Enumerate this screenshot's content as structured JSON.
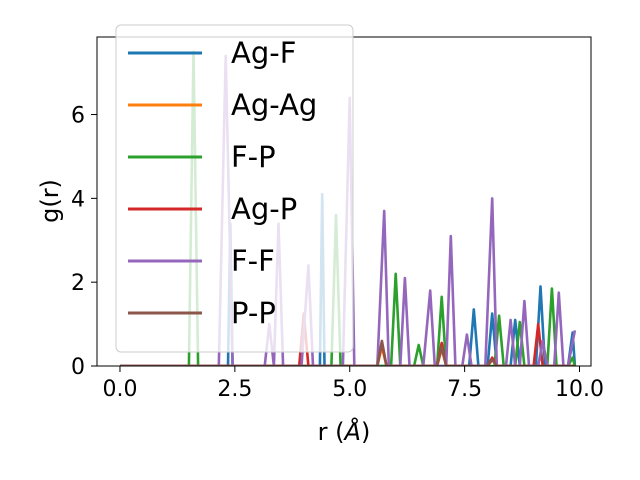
{
  "chart_data": {
    "type": "line",
    "xlabel_main": "r (",
    "xlabel_unit": "Å",
    "xlabel_close": ")",
    "ylabel": "g(r)",
    "xlim": [
      -0.5,
      10.25
    ],
    "ylim": [
      0,
      7.85
    ],
    "xticks": [
      {
        "v": 0.0,
        "label": "0.0"
      },
      {
        "v": 2.5,
        "label": "2.5"
      },
      {
        "v": 5.0,
        "label": "5.0"
      },
      {
        "v": 7.5,
        "label": "7.5"
      },
      {
        "v": 10.0,
        "label": "10.0"
      }
    ],
    "yticks": [
      {
        "v": 0,
        "label": "0"
      },
      {
        "v": 2,
        "label": "2"
      },
      {
        "v": 4,
        "label": "4"
      },
      {
        "v": 6,
        "label": "6"
      }
    ],
    "legend_position": "upper-left",
    "series": [
      {
        "name": "Ag-F",
        "color": "#1f77b4",
        "points": [
          [
            0,
            0
          ],
          [
            2.35,
            0
          ],
          [
            2.4,
            3.4
          ],
          [
            2.45,
            0
          ],
          [
            4.35,
            0
          ],
          [
            4.4,
            4.1
          ],
          [
            4.45,
            0
          ],
          [
            7.6,
            0
          ],
          [
            7.7,
            1.35
          ],
          [
            7.8,
            0
          ],
          [
            8.0,
            0
          ],
          [
            8.1,
            1.25
          ],
          [
            8.2,
            0
          ],
          [
            8.5,
            0
          ],
          [
            8.6,
            1.1
          ],
          [
            8.7,
            0
          ],
          [
            9.05,
            0
          ],
          [
            9.15,
            1.9
          ],
          [
            9.25,
            0
          ],
          [
            9.75,
            0
          ],
          [
            9.85,
            0.8
          ],
          [
            9.9,
            0
          ]
        ]
      },
      {
        "name": "Ag-Ag",
        "color": "#ff7f0e",
        "points": [
          [
            0,
            0
          ],
          [
            5.6,
            0
          ],
          [
            5.7,
            0.45
          ],
          [
            5.8,
            0
          ],
          [
            6.9,
            0
          ],
          [
            7.0,
            0.4
          ],
          [
            7.1,
            0
          ],
          [
            8.0,
            0
          ],
          [
            8.1,
            0.15
          ],
          [
            8.2,
            0
          ],
          [
            9.9,
            0
          ]
        ]
      },
      {
        "name": "F-P",
        "color": "#2ca02c",
        "points": [
          [
            0,
            0
          ],
          [
            1.5,
            0
          ],
          [
            1.6,
            7.5
          ],
          [
            1.7,
            0
          ],
          [
            4.6,
            0
          ],
          [
            4.7,
            3.6
          ],
          [
            4.8,
            0
          ],
          [
            5.9,
            0
          ],
          [
            6.0,
            2.2
          ],
          [
            6.1,
            0
          ],
          [
            6.4,
            0
          ],
          [
            6.5,
            0.5
          ],
          [
            6.6,
            0
          ],
          [
            6.9,
            0
          ],
          [
            7.0,
            1.65
          ],
          [
            7.1,
            0
          ],
          [
            8.15,
            0
          ],
          [
            8.25,
            1.2
          ],
          [
            8.35,
            0
          ],
          [
            8.6,
            0
          ],
          [
            8.7,
            1.05
          ],
          [
            8.8,
            0
          ],
          [
            9.3,
            0
          ],
          [
            9.4,
            1.85
          ],
          [
            9.5,
            0
          ],
          [
            9.75,
            0
          ],
          [
            9.85,
            0.2
          ],
          [
            9.9,
            0
          ]
        ]
      },
      {
        "name": "Ag-P",
        "color": "#d62728",
        "points": [
          [
            0,
            0
          ],
          [
            3.9,
            0
          ],
          [
            4.0,
            1.25
          ],
          [
            4.1,
            0
          ],
          [
            5.6,
            0
          ],
          [
            5.7,
            0.55
          ],
          [
            5.8,
            0
          ],
          [
            6.9,
            0
          ],
          [
            7.0,
            0.55
          ],
          [
            7.1,
            0
          ],
          [
            8.0,
            0
          ],
          [
            8.1,
            0.2
          ],
          [
            8.2,
            0
          ],
          [
            9.0,
            0
          ],
          [
            9.1,
            1.0
          ],
          [
            9.2,
            0
          ],
          [
            9.9,
            0
          ]
        ]
      },
      {
        "name": "F-F",
        "color": "#9467bd",
        "points": [
          [
            0,
            0
          ],
          [
            2.15,
            0
          ],
          [
            2.3,
            7.4
          ],
          [
            2.45,
            0
          ],
          [
            3.15,
            0
          ],
          [
            3.25,
            1.0
          ],
          [
            3.35,
            0
          ],
          [
            3.45,
            3.4
          ],
          [
            3.55,
            0
          ],
          [
            3.95,
            0
          ],
          [
            4.1,
            2.4
          ],
          [
            4.2,
            0
          ],
          [
            4.85,
            0
          ],
          [
            5.0,
            6.4
          ],
          [
            5.1,
            0
          ],
          [
            5.6,
            0
          ],
          [
            5.75,
            3.7
          ],
          [
            5.85,
            0
          ],
          [
            6.1,
            0
          ],
          [
            6.2,
            2.1
          ],
          [
            6.3,
            0
          ],
          [
            6.6,
            0
          ],
          [
            6.75,
            1.8
          ],
          [
            6.85,
            0
          ],
          [
            7.1,
            0
          ],
          [
            7.2,
            3.1
          ],
          [
            7.3,
            0
          ],
          [
            7.45,
            0
          ],
          [
            7.55,
            0.75
          ],
          [
            7.65,
            0
          ],
          [
            7.95,
            0
          ],
          [
            8.1,
            4.0
          ],
          [
            8.2,
            0
          ],
          [
            8.4,
            0
          ],
          [
            8.5,
            1.1
          ],
          [
            8.6,
            0
          ],
          [
            8.7,
            0
          ],
          [
            8.8,
            1.55
          ],
          [
            8.9,
            0
          ],
          [
            9.1,
            0
          ],
          [
            9.2,
            0.6
          ],
          [
            9.3,
            0
          ],
          [
            9.45,
            0
          ],
          [
            9.55,
            1.75
          ],
          [
            9.65,
            0
          ],
          [
            9.75,
            0
          ],
          [
            9.9,
            0.85
          ]
        ]
      },
      {
        "name": "P-P",
        "color": "#8c564b",
        "points": [
          [
            0,
            0
          ],
          [
            5.6,
            0
          ],
          [
            5.7,
            0.6
          ],
          [
            5.8,
            0
          ],
          [
            6.9,
            0
          ],
          [
            7.0,
            0.45
          ],
          [
            7.1,
            0
          ],
          [
            8.0,
            0
          ],
          [
            8.1,
            0.15
          ],
          [
            8.2,
            0
          ],
          [
            9.9,
            0
          ]
        ]
      }
    ]
  }
}
